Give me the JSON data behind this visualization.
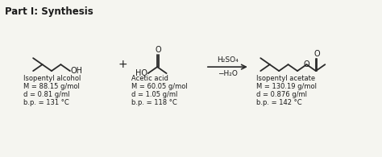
{
  "title": "Part I: Synthesis",
  "background_color": "#f5f5f0",
  "compound1_name": "Isopentyl alcohol",
  "compound1_M": "M = 88.15 g/mol",
  "compound1_d": "d = 0.81 g/ml",
  "compound1_bp": "b.p. = 131 °C",
  "compound2_name": "Acetic acid",
  "compound2_M": "M = 60.05 g/mol",
  "compound2_d": "d = 1.05 g/ml",
  "compound2_bp": "b.p. = 118 °C",
  "reagent_line1": "H₂SO₄",
  "reagent_line2": "−H₂O",
  "compound3_name": "Isopentyl acetate",
  "compound3_M": "M = 130.19 g/mol",
  "compound3_d": "d = 0.876 g/ml",
  "compound3_bp": "b.p. = 142 °C",
  "plus_sign": "+",
  "text_color": "#1a1a1a",
  "line_color": "#2a2a2a",
  "bond_lw": 1.3,
  "label_fontsize": 6.0,
  "title_fontsize": 8.5
}
